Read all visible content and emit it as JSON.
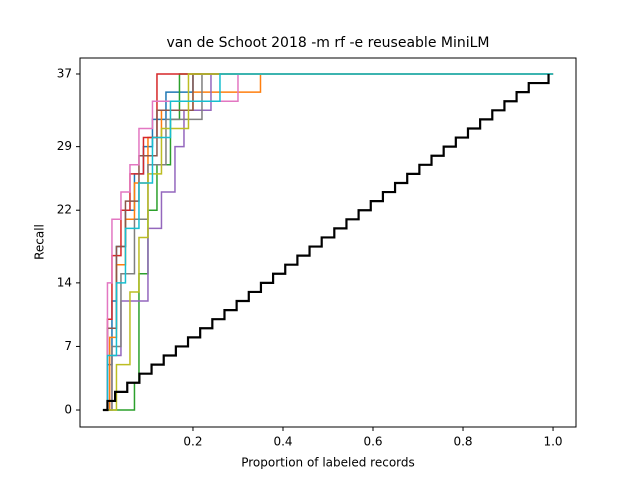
{
  "chart_data": {
    "type": "step",
    "title": "van de Schoot 2018 -m rf -e reuseable MiniLM",
    "xlabel": "Proportion of labeled records",
    "ylabel": "Recall",
    "xlim": [
      -0.051,
      1.051
    ],
    "ylim": [
      -1.87,
      38.76
    ],
    "xticks": [
      0.2,
      0.4,
      0.6,
      0.8,
      {
        "value": 1,
        "label": "1.0"
      }
    ],
    "yticks": [
      0,
      7,
      14,
      22,
      29,
      37
    ],
    "series": [
      {
        "color": "#1f77b4",
        "x": [
          0,
          0.01,
          0.02,
          0.03,
          0.05,
          0.07,
          0.09,
          0.11,
          0.14,
          0.2,
          1.0
        ],
        "values": [
          0,
          5,
          12,
          18,
          22,
          26,
          29,
          32,
          35,
          37,
          37
        ]
      },
      {
        "color": "#ff7f0e",
        "x": [
          0,
          0.015,
          0.03,
          0.05,
          0.07,
          0.1,
          0.13,
          0.2,
          0.35,
          1.0
        ],
        "values": [
          0,
          8,
          16,
          21,
          25,
          30,
          33,
          35,
          37,
          37
        ]
      },
      {
        "color": "#2ca02c",
        "x": [
          0,
          0.07,
          0.08,
          0.1,
          0.12,
          0.15,
          0.17,
          1.0
        ],
        "values": [
          0,
          3,
          15,
          22,
          27,
          32,
          37,
          37
        ]
      },
      {
        "color": "#d62728",
        "x": [
          0,
          0.01,
          0.02,
          0.04,
          0.06,
          0.09,
          0.12,
          1.0
        ],
        "values": [
          0,
          10,
          17,
          22,
          26,
          30,
          37,
          37
        ]
      },
      {
        "color": "#9467bd",
        "x": [
          0,
          0.02,
          0.04,
          0.1,
          0.13,
          0.16,
          0.18,
          0.24,
          1.0
        ],
        "values": [
          0,
          6,
          12,
          20,
          24,
          29,
          33,
          37,
          37
        ]
      },
      {
        "color": "#8c564b",
        "x": [
          0,
          0.01,
          0.03,
          0.05,
          0.08,
          0.12,
          0.2,
          1.0
        ],
        "values": [
          0,
          9,
          18,
          23,
          28,
          33,
          37,
          37
        ]
      },
      {
        "color": "#e377c2",
        "x": [
          0,
          0.01,
          0.02,
          0.04,
          0.06,
          0.08,
          0.11,
          0.3,
          1.0
        ],
        "values": [
          0,
          14,
          21,
          24,
          27,
          31,
          34,
          37,
          37
        ]
      },
      {
        "color": "#7f7f7f",
        "x": [
          0,
          0.02,
          0.04,
          0.07,
          0.1,
          0.14,
          0.22,
          1.0
        ],
        "values": [
          0,
          7,
          15,
          21,
          27,
          32,
          37,
          37
        ]
      },
      {
        "color": "#bcbd22",
        "x": [
          0,
          0.03,
          0.06,
          0.08,
          0.1,
          0.13,
          0.19,
          1.0
        ],
        "values": [
          0,
          5,
          13,
          19,
          26,
          31,
          37,
          37
        ]
      },
      {
        "color": "#17becf",
        "x": [
          0,
          0.01,
          0.03,
          0.05,
          0.08,
          0.11,
          0.15,
          0.26,
          1.0
        ],
        "values": [
          0,
          6,
          14,
          20,
          25,
          30,
          34,
          37,
          37
        ]
      },
      {
        "color": "#000000",
        "x": [
          0,
          0.01,
          0.027,
          0.054,
          0.081,
          0.108,
          0.135,
          0.162,
          0.189,
          0.216,
          0.243,
          0.27,
          0.297,
          0.324,
          0.351,
          0.378,
          0.405,
          0.432,
          0.459,
          0.486,
          0.514,
          0.541,
          0.568,
          0.595,
          0.622,
          0.649,
          0.676,
          0.703,
          0.73,
          0.757,
          0.784,
          0.811,
          0.838,
          0.865,
          0.892,
          0.919,
          0.946,
          0.99
        ],
        "values": [
          0,
          1,
          2,
          3,
          4,
          5,
          6,
          7,
          8,
          9,
          10,
          11,
          12,
          13,
          14,
          15,
          16,
          17,
          18,
          19,
          20,
          21,
          22,
          23,
          24,
          25,
          26,
          27,
          28,
          29,
          30,
          31,
          32,
          33,
          34,
          35,
          36,
          37
        ]
      }
    ]
  }
}
